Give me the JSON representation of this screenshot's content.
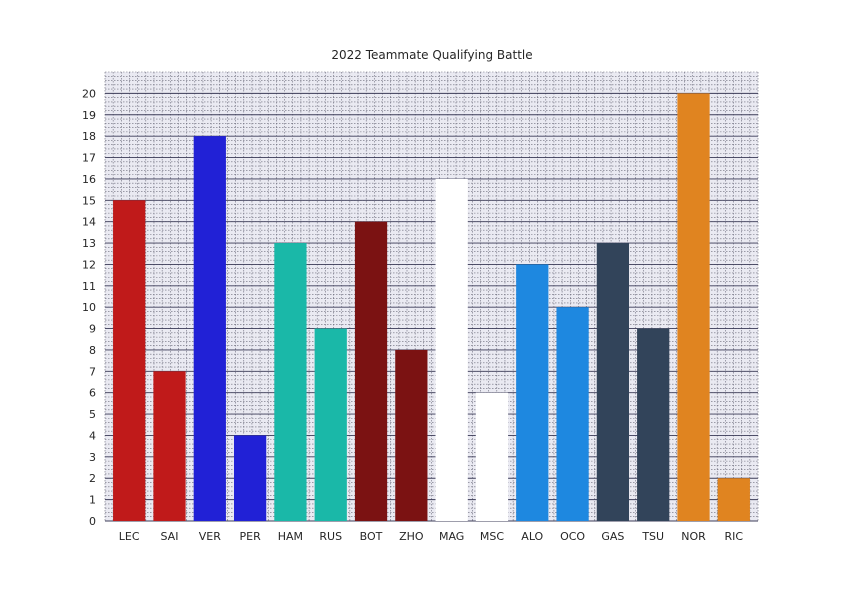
{
  "chart_data": {
    "type": "bar",
    "title": "2022 Teammate Qualifying Battle",
    "xlabel": "",
    "ylabel": "",
    "categories": [
      "LEC",
      "SAI",
      "VER",
      "PER",
      "HAM",
      "RUS",
      "BOT",
      "ZHO",
      "MAG",
      "MSC",
      "ALO",
      "OCO",
      "GAS",
      "TSU",
      "NOR",
      "RIC"
    ],
    "values": [
      15,
      7,
      18,
      4,
      13,
      9,
      14,
      8,
      16,
      6,
      12,
      10,
      13,
      9,
      20,
      2
    ],
    "colors": [
      "#c01a1a",
      "#c01a1a",
      "#2121d6",
      "#2121d6",
      "#1ab8a8",
      "#1ab8a8",
      "#7b1212",
      "#7b1212",
      "#ffffff",
      "#ffffff",
      "#1e88e0",
      "#1e88e0",
      "#32445a",
      "#32445a",
      "#e08420",
      "#e08420"
    ],
    "ylim": [
      0,
      21
    ],
    "yticks": [
      0,
      1,
      2,
      3,
      4,
      5,
      6,
      7,
      8,
      9,
      10,
      11,
      12,
      13,
      14,
      15,
      16,
      17,
      18,
      19,
      20
    ],
    "grid": true,
    "plot_background": "#eaeaf2"
  }
}
